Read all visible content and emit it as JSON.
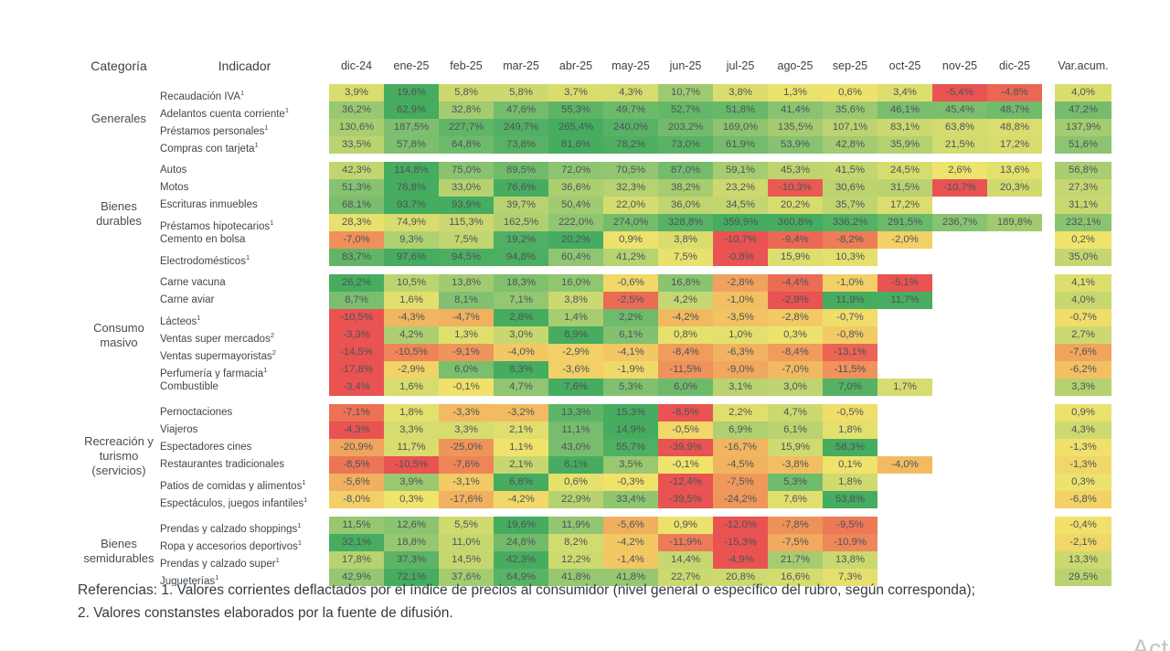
{
  "chart_data": {
    "type": "heatmap",
    "title": "",
    "category_header": "Categoría",
    "indicator_header": "Indicador",
    "columns": [
      "dic-24",
      "ene-25",
      "feb-25",
      "mar-25",
      "abr-25",
      "may-25",
      "jun-25",
      "jul-25",
      "ago-25",
      "sep-25",
      "oct-25",
      "nov-25",
      "dic-25"
    ],
    "var_header": "Var.acum.",
    "value_format": "percent-comma-decimal",
    "color_scale_note": "per-row: 0=yellow, row max=green, row min(neg)=red",
    "groups": [
      {
        "name": "Generales",
        "rows": [
          {
            "label": "Recaudación IVA",
            "sup": "1",
            "values": [
              3.9,
              19.6,
              5.8,
              5.8,
              3.7,
              4.3,
              10.7,
              3.8,
              1.3,
              0.6,
              3.4,
              -5.4,
              -4.8
            ],
            "var": 4.0
          },
          {
            "label": "Adelantos cuenta corriente",
            "sup": "1",
            "values": [
              36.2,
              62.9,
              32.8,
              47.6,
              55.3,
              49.7,
              52.7,
              51.8,
              41.4,
              35.6,
              46.1,
              45.4,
              48.7
            ],
            "var": 47.2
          },
          {
            "label": "Préstamos personales",
            "sup": "1",
            "values": [
              130.6,
              187.5,
              227.7,
              249.7,
              265.4,
              240.0,
              203.2,
              169.0,
              135.5,
              107.1,
              83.1,
              63.8,
              48.8
            ],
            "var": 137.9
          },
          {
            "label": "Compras con tarjeta",
            "sup": "1",
            "values": [
              33.5,
              57.8,
              64.8,
              73.8,
              81.6,
              78.2,
              73.0,
              61.9,
              53.9,
              42.8,
              35.9,
              21.5,
              17.2
            ],
            "var": 51.6
          }
        ]
      },
      {
        "name": "Bienes durables",
        "rows": [
          {
            "label": "Autos",
            "sup": "",
            "values": [
              42.3,
              114.8,
              75.0,
              89.5,
              72.0,
              70.5,
              87.0,
              59.1,
              45.3,
              41.5,
              24.5,
              2.6,
              13.6
            ],
            "var": 56.8
          },
          {
            "label": "Motos",
            "sup": "",
            "values": [
              51.3,
              76.8,
              33.0,
              76.6,
              36.6,
              32.3,
              38.2,
              23.2,
              -10.3,
              30.6,
              31.5,
              -10.7,
              20.3
            ],
            "var": 27.3
          },
          {
            "label": "Escrituras inmuebles",
            "sup": "",
            "values": [
              68.1,
              93.7,
              93.9,
              39.7,
              50.4,
              22.0,
              36.0,
              34.5,
              20.2,
              35.7,
              17.2,
              null,
              null
            ],
            "var": 31.1
          },
          {
            "label": "Préstamos hipotecarios",
            "sup": "1",
            "values": [
              28.3,
              74.9,
              115.3,
              162.5,
              222.0,
              274.0,
              328.8,
              359.9,
              360.8,
              336.2,
              291.5,
              236.7,
              189.8
            ],
            "var": 232.1
          },
          {
            "label": "Cemento en bolsa",
            "sup": "",
            "values": [
              -7.0,
              9.3,
              7.5,
              19.2,
              20.2,
              0.9,
              3.8,
              -10.7,
              -9.4,
              -8.2,
              -2.0,
              null,
              null
            ],
            "var": 0.2
          },
          {
            "label": "Electrodomésticos",
            "sup": "1",
            "values": [
              83.7,
              97.6,
              94.5,
              94.8,
              60.4,
              41.2,
              7.5,
              -0.8,
              15.9,
              10.3,
              null,
              null,
              null
            ],
            "var": 35.0
          }
        ]
      },
      {
        "name": "Consumo masivo",
        "rows": [
          {
            "label": "Carne vacuna",
            "sup": "",
            "values": [
              26.2,
              10.5,
              13.8,
              18.3,
              16.0,
              -0.6,
              16.8,
              -2.8,
              -4.4,
              -1.0,
              -5.1,
              null,
              null
            ],
            "var": 4.1
          },
          {
            "label": "Carne aviar",
            "sup": "",
            "values": [
              8.7,
              1.6,
              8.1,
              7.1,
              3.8,
              -2.5,
              4.2,
              -1.0,
              -2.9,
              11.9,
              11.7,
              null,
              null
            ],
            "var": 4.0
          },
          {
            "label": "Lácteos",
            "sup": "1",
            "values": [
              -10.5,
              -4.3,
              -4.7,
              2.8,
              1.4,
              2.2,
              -4.2,
              -3.5,
              -2.8,
              -0.7,
              null,
              null,
              null
            ],
            "var": -0.7
          },
          {
            "label": "Ventas super mercados",
            "sup": "2",
            "values": [
              -3.3,
              4.2,
              1.3,
              3.0,
              8.9,
              6.1,
              0.8,
              1.0,
              0.3,
              -0.8,
              null,
              null,
              null
            ],
            "var": 2.7
          },
          {
            "label": "Ventas supermayoristas",
            "sup": "2",
            "values": [
              -14.5,
              -10.5,
              -9.1,
              -4.0,
              -2.9,
              -4.1,
              -8.4,
              -6.3,
              -8.4,
              -13.1,
              null,
              null,
              null
            ],
            "var": -7.6
          },
          {
            "label": "Perfumería y farmacia",
            "sup": "1",
            "values": [
              -17.8,
              -2.9,
              6.0,
              8.3,
              -3.6,
              -1.9,
              -11.5,
              -9.0,
              -7.0,
              -11.5,
              null,
              null,
              null
            ],
            "var": -6.2
          },
          {
            "label": "Combustible",
            "sup": "",
            "values": [
              -3.4,
              1.6,
              -0.1,
              4.7,
              7.6,
              5.3,
              6.0,
              3.1,
              3.0,
              7.0,
              1.7,
              null,
              null
            ],
            "var": 3.3
          }
        ]
      },
      {
        "name": "Recreación y turismo (servicios)",
        "rows": [
          {
            "label": "Pernoctaciones",
            "sup": "",
            "values": [
              -7.1,
              1.8,
              -3.3,
              -3.2,
              13.3,
              15.3,
              -8.5,
              2.2,
              4.7,
              -0.5,
              null,
              null,
              null
            ],
            "var": 0.9
          },
          {
            "label": "Viajeros",
            "sup": "",
            "values": [
              -4.3,
              3.3,
              3.3,
              2.1,
              11.1,
              14.9,
              -0.5,
              6.9,
              6.1,
              1.8,
              null,
              null,
              null
            ],
            "var": 4.3
          },
          {
            "label": "Espectadores cines",
            "sup": "",
            "values": [
              -20.9,
              11.7,
              -25.0,
              1.1,
              43.0,
              55.7,
              -39.9,
              -16.7,
              15.9,
              58.3,
              null,
              null,
              null
            ],
            "var": -1.3
          },
          {
            "label": "Restaurantes tradicionales",
            "sup": "",
            "values": [
              -8.5,
              -10.5,
              -7.6,
              2.1,
              6.1,
              3.5,
              -0.1,
              -4.5,
              -3.8,
              0.1,
              -4.0,
              null,
              null
            ],
            "var": -1.3
          },
          {
            "label": "Patios de comidas y alimentos",
            "sup": "1",
            "values": [
              -5.6,
              3.9,
              -3.1,
              6.8,
              0.6,
              -0.3,
              -12.4,
              -7.5,
              5.3,
              1.8,
              null,
              null,
              null
            ],
            "var": 0.3
          },
          {
            "label": "Espectáculos, juegos infantiles",
            "sup": "1",
            "values": [
              -8.0,
              0.3,
              -17.6,
              -4.2,
              22.9,
              33.4,
              -39.5,
              -24.2,
              7.6,
              53.8,
              null,
              null,
              null
            ],
            "var": -6.8
          }
        ]
      },
      {
        "name": "Bienes semidurables",
        "rows": [
          {
            "label": "Prendas y calzado shoppings",
            "sup": "1",
            "values": [
              11.5,
              12.6,
              5.5,
              19.6,
              11.9,
              -5.6,
              0.9,
              -12.0,
              -7.8,
              -9.5,
              null,
              null,
              null
            ],
            "var": -0.4
          },
          {
            "label": "Ropa y accesorios deportivos",
            "sup": "1",
            "values": [
              32.1,
              18.8,
              11.0,
              24.8,
              8.2,
              -4.2,
              -11.9,
              -15.3,
              -7.5,
              -10.9,
              null,
              null,
              null
            ],
            "var": -2.1
          },
          {
            "label": "Prendas y calzado super",
            "sup": "1",
            "values": [
              17.8,
              37.3,
              14.5,
              42.3,
              12.2,
              -1.4,
              14.4,
              -4.9,
              21.7,
              13.8,
              null,
              null,
              null
            ],
            "var": 13.3
          },
          {
            "label": "Jugueterías",
            "sup": "1",
            "values": [
              42.9,
              72.1,
              37.6,
              64.9,
              41.8,
              41.8,
              22.7,
              20.8,
              16.6,
              7.3,
              null,
              null,
              null
            ],
            "var": 29.5
          }
        ]
      }
    ]
  },
  "colors": {
    "positive_stops": [
      "#f1e46c",
      "#c9d870",
      "#86c271",
      "#46ac60"
    ],
    "negative_stops": [
      "#f1e46c",
      "#f2c263",
      "#ef8f5a",
      "#e95351"
    ],
    "cell_text": "#4d5358",
    "header_text": "#3b4146",
    "empty_cell": "#ffffff"
  },
  "footer": {
    "line1": "Referencias: 1. Valores corrientes deflactados por el índice de precios al consumidor (nivel general o específico del rubro, según corresponda);",
    "line2": "2. Valores constanstes elaborados por la fuente de difusión."
  },
  "watermark": "Act"
}
